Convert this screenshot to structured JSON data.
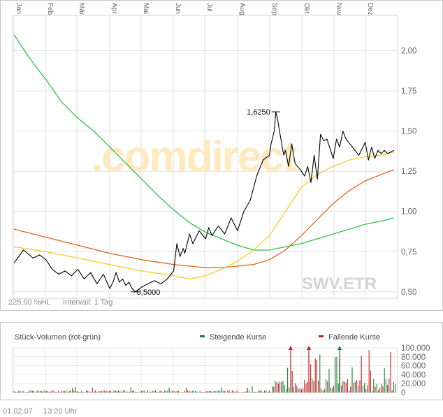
{
  "footer": {
    "date": "01.02.07",
    "time": "13:20 Uhr"
  },
  "chart_data": [
    {
      "type": "line",
      "symbol_label": "SWV.ETR",
      "watermark": ".comdirect",
      "perf_label": "225,00 %HL",
      "interval_label": "Intervall: 1 Tag",
      "months": [
        "Jan",
        "Feb",
        "Mär",
        "Apr",
        "Mai",
        "Jun",
        "Jul",
        "Aug",
        "Sep",
        "Okt",
        "Nov",
        "Dez"
      ],
      "y_ticks": [
        "0,50",
        "0,75",
        "1,00",
        "1,25",
        "1,50",
        "1,75",
        "2,00"
      ],
      "ylim": [
        0.46,
        2.22
      ],
      "annotations": {
        "high": "1,6250",
        "low": "0,5000"
      },
      "colors": {
        "price": "#000000",
        "ma_short": "#f5c400",
        "ma_mid": "#e8601c",
        "ma_long": "#2ec04a"
      },
      "series": [
        {
          "name": "",
          "color_key": "price",
          "x": [
            0,
            0.3,
            0.6,
            0.8,
            1,
            1.2,
            1.4,
            1.6,
            1.8,
            2,
            2.2,
            2.4,
            2.6,
            2.8,
            3,
            3.1,
            3.2,
            3.3,
            3.4,
            3.5,
            3.6,
            3.7,
            3.8,
            4,
            4.2,
            4.4,
            4.6,
            4.8,
            5,
            5.1,
            5.2,
            5.3,
            5.35,
            5.5,
            5.6,
            5.8,
            6,
            6.1,
            6.2,
            6.4,
            6.6,
            6.8,
            7,
            7.2,
            7.4,
            7.6,
            7.8,
            8,
            8.05,
            8.15,
            8.2,
            8.25,
            8.3,
            8.4,
            8.45,
            8.5,
            8.6,
            8.7,
            8.8,
            9,
            9.1,
            9.2,
            9.3,
            9.4,
            9.5,
            9.6,
            9.7,
            9.8,
            10,
            10.1,
            10.2,
            10.3,
            10.4,
            10.6,
            10.8,
            11,
            11.1,
            11.2,
            11.3,
            11.4,
            11.5,
            11.6,
            11.7,
            11.9
          ],
          "values": [
            0.68,
            0.76,
            0.71,
            0.73,
            0.7,
            0.64,
            0.61,
            0.63,
            0.6,
            0.64,
            0.58,
            0.62,
            0.55,
            0.61,
            0.52,
            0.56,
            0.62,
            0.56,
            0.58,
            0.54,
            0.56,
            0.52,
            0.5,
            0.53,
            0.55,
            0.57,
            0.55,
            0.58,
            0.63,
            0.8,
            0.72,
            0.77,
            0.74,
            0.86,
            0.8,
            0.88,
            0.83,
            0.9,
            0.85,
            0.91,
            0.86,
            0.96,
            0.88,
            1.0,
            1.07,
            1.22,
            1.32,
            1.35,
            1.42,
            1.5,
            1.62,
            1.58,
            1.52,
            1.4,
            1.35,
            1.38,
            1.28,
            1.42,
            1.3,
            1.25,
            1.22,
            1.28,
            1.18,
            1.35,
            1.2,
            1.48,
            1.44,
            1.45,
            1.33,
            1.45,
            1.4,
            1.5,
            1.45,
            1.4,
            1.35,
            1.43,
            1.32,
            1.4,
            1.33,
            1.38,
            1.36,
            1.38,
            1.36,
            1.38
          ]
        },
        {
          "name": "",
          "color_key": "ma_short",
          "x": [
            0,
            1,
            2,
            3,
            4,
            5,
            5.5,
            6,
            6.5,
            7,
            7.5,
            8,
            8.5,
            9,
            9.5,
            10,
            10.5,
            11,
            11.5,
            11.9
          ],
          "values": [
            0.78,
            0.75,
            0.71,
            0.67,
            0.63,
            0.6,
            0.58,
            0.6,
            0.64,
            0.69,
            0.76,
            0.85,
            1.0,
            1.15,
            1.23,
            1.28,
            1.32,
            1.34,
            1.35,
            1.37
          ]
        },
        {
          "name": "",
          "color_key": "ma_mid",
          "x": [
            0,
            1,
            2,
            3,
            4,
            5,
            5.5,
            6,
            6.5,
            7,
            7.5,
            8,
            8.5,
            9,
            9.5,
            10,
            10.5,
            11,
            11.5,
            11.9
          ],
          "values": [
            0.89,
            0.84,
            0.79,
            0.74,
            0.7,
            0.67,
            0.66,
            0.65,
            0.65,
            0.66,
            0.67,
            0.7,
            0.76,
            0.85,
            0.95,
            1.05,
            1.13,
            1.19,
            1.23,
            1.26
          ]
        },
        {
          "name": "",
          "color_key": "ma_long",
          "x": [
            0,
            0.5,
            1,
            1.5,
            2,
            2.5,
            3,
            3.5,
            4,
            4.5,
            5,
            5.5,
            6,
            6.5,
            7,
            7.5,
            8,
            8.5,
            9,
            9.5,
            10,
            10.5,
            11,
            11.5,
            11.9
          ],
          "values": [
            2.1,
            1.95,
            1.82,
            1.68,
            1.58,
            1.5,
            1.4,
            1.3,
            1.2,
            1.1,
            1.01,
            0.93,
            0.87,
            0.83,
            0.79,
            0.76,
            0.76,
            0.78,
            0.8,
            0.83,
            0.86,
            0.89,
            0.92,
            0.94,
            0.96
          ]
        }
      ]
    },
    {
      "type": "bar",
      "title": "Stück-Volumen (rot-grün)",
      "legend": [
        {
          "label": "Steigende Kurse",
          "color": "#1d7a36"
        },
        {
          "label": "Fallende Kurse",
          "color": "#c41e1e"
        }
      ],
      "y_ticks": [
        "0",
        "20.000",
        "40.000",
        "60.000",
        "80.000",
        "100.000"
      ],
      "ylim": [
        0,
        100000
      ],
      "colors": {
        "up": "#1d7a36",
        "down": "#c41e1e"
      }
    }
  ]
}
